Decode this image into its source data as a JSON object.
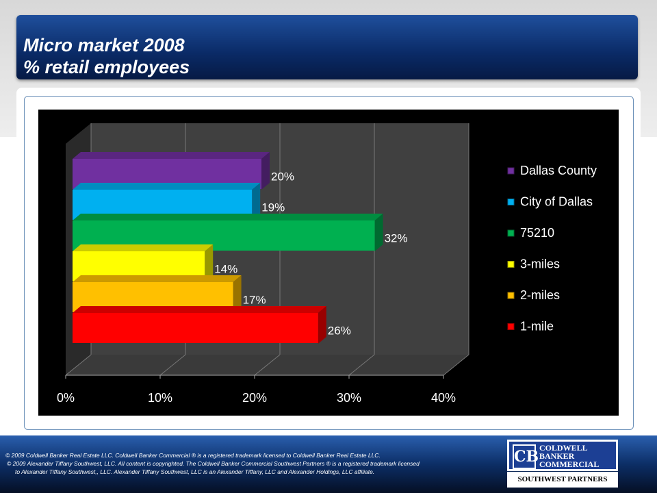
{
  "title": {
    "line1": "Micro market 2008",
    "line2": "% retail employees"
  },
  "chart_data": {
    "type": "bar",
    "orientation": "horizontal",
    "three_d": true,
    "categories": [
      "Dallas County",
      "City of Dallas",
      "75210",
      "3-miles",
      "2-miles",
      "1-mile"
    ],
    "values": [
      20,
      19,
      32,
      14,
      17,
      26
    ],
    "data_labels": [
      "20%",
      "19%",
      "32%",
      "14%",
      "17%",
      "26%"
    ],
    "colors": [
      "#7030a0",
      "#00b0f0",
      "#00b050",
      "#ffff00",
      "#ffc000",
      "#ff0000"
    ],
    "xlim": [
      0,
      40
    ],
    "xticks": [
      "0%",
      "10%",
      "20%",
      "30%",
      "40%"
    ],
    "grid": true,
    "legend": "right",
    "title": "",
    "xlabel": "",
    "ylabel": ""
  },
  "footer": {
    "line1": "©  2009 Coldwell Banker Real Estate  LLC. Coldwell Banker Commercial ® is a registered trademark licensed to Coldwell Banker Real Estate LLC.",
    "line2": "© 2009  Alexander Tiffany Southwest, LLC. All content is copyrighted. The Coldwell Banker Commercial Southwest Partners ® is a registered trademark licensed",
    "line3": "to  Alexander Tiffany Southwest,, LLC.  Alexander Tiffany Southwest, LLC is an Alexander Tiffany, LLC and Alexander Holdings, LLC affiliate."
  },
  "logo": {
    "l1": "COLDWELL",
    "l2": "BANKER",
    "l3": "COMMERCIAL",
    "sub": "SOUTHWEST PARTNERS"
  }
}
